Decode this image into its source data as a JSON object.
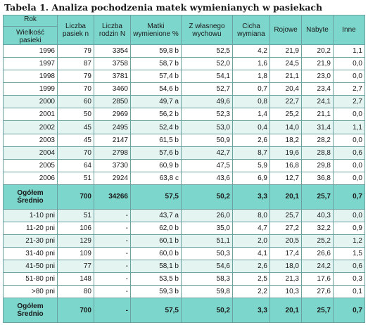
{
  "caption": "Tabela 1. Analiza pochodzenia  matek wymienianych w pasiekach",
  "header": {
    "rok": "Rok",
    "wielkosc": "Wielkość pasieki",
    "cols": [
      "Liczba pasiek n",
      "Liczba rodzin N",
      "Matki wymienione %",
      "Z własnego wychowu",
      "Cicha wymiana",
      "Rojowe",
      "Nabyte",
      "Inne"
    ]
  },
  "years": [
    {
      "label": "1996",
      "cells": [
        "79",
        "3354",
        "59,8 b",
        "52,5",
        "4,2",
        "21,9",
        "20,2",
        "1,1"
      ]
    },
    {
      "label": "1997",
      "cells": [
        "87",
        "3758",
        "58,7 b",
        "52,0",
        "1,6",
        "24,5",
        "21,9",
        "0,0"
      ]
    },
    {
      "label": "1998",
      "cells": [
        "79",
        "3781",
        "57,4 b",
        "54,1",
        "1,8",
        "21,1",
        "23,0",
        "0,0"
      ]
    },
    {
      "label": "1999",
      "cells": [
        "70",
        "3460",
        "54,6 b",
        "52,7",
        "0,7",
        "20,4",
        "23,4",
        "2,7"
      ]
    },
    {
      "label": "2000",
      "cells": [
        "60",
        "2850",
        "49,7 a",
        "49,6",
        "0,8",
        "22,7",
        "24,1",
        "2,7"
      ]
    },
    {
      "label": "2001",
      "cells": [
        "50",
        "2969",
        "56,2 b",
        "52,3",
        "1,4",
        "25,2",
        "21,1",
        "0,0"
      ]
    },
    {
      "label": "2002",
      "cells": [
        "45",
        "2495",
        "52,4 b",
        "53,0",
        "0,4",
        "14,0",
        "31,4",
        "1,1"
      ]
    },
    {
      "label": "2003",
      "cells": [
        "45",
        "2147",
        "61,5 b",
        "50,9",
        "2,6",
        "18,2",
        "28,2",
        "0,0"
      ]
    },
    {
      "label": "2004",
      "cells": [
        "70",
        "2798",
        "57,6 b",
        "42,7",
        "8,7",
        "19,6",
        "28,8",
        "0,6"
      ]
    },
    {
      "label": "2005",
      "cells": [
        "64",
        "3730",
        "60,9 b",
        "47,5",
        "5,9",
        "16,8",
        "29,8",
        "0,0"
      ]
    },
    {
      "label": "2006",
      "cells": [
        "51",
        "2924",
        "63,8 c",
        "43,6",
        "6,9",
        "12,7",
        "36,8",
        "0,0"
      ]
    }
  ],
  "total1": {
    "label1": "Ogółem",
    "label2": "Średnio",
    "cells": [
      "700",
      "34266",
      "57,5",
      "50,2",
      "3,3",
      "20,1",
      "25,7",
      "0,7"
    ]
  },
  "sizes": [
    {
      "label": "1-10 pni",
      "cells": [
        "51",
        "-",
        "43,7 a",
        "26,0",
        "8,0",
        "25,7",
        "40,3",
        "0,0"
      ]
    },
    {
      "label": "11-20 pni",
      "cells": [
        "106",
        "-",
        "62,0 b",
        "35,0",
        "4,7",
        "27,2",
        "32,2",
        "0,9"
      ]
    },
    {
      "label": "21-30 pni",
      "cells": [
        "129",
        "-",
        "60,1 b",
        "51,1",
        "2,0",
        "20,5",
        "25,2",
        "1,2"
      ]
    },
    {
      "label": "31-40 pni",
      "cells": [
        "109",
        "-",
        "60,0 b",
        "50,3",
        "4,1",
        "17,4",
        "26,6",
        "1,5"
      ]
    },
    {
      "label": "41-50 pni",
      "cells": [
        "77",
        "-",
        "58,1 b",
        "54,6",
        "2,6",
        "18,0",
        "24,2",
        "0,6"
      ]
    },
    {
      "label": "51-80 pni",
      "cells": [
        "148",
        "-",
        "53,5 b",
        "58,3",
        "2,5",
        "21,3",
        "17,6",
        "0,3"
      ]
    },
    {
      "label": ">80 pni",
      "cells": [
        "80",
        "-",
        "59,3 b",
        "59,8",
        "2,2",
        "10,3",
        "27,6",
        "0,1"
      ]
    }
  ],
  "total2": {
    "label1": "Ogółem",
    "label2": "Średnio",
    "cells": [
      "700",
      "-",
      "57,5",
      "50,2",
      "3,3",
      "20,1",
      "25,7",
      "0,7"
    ]
  }
}
